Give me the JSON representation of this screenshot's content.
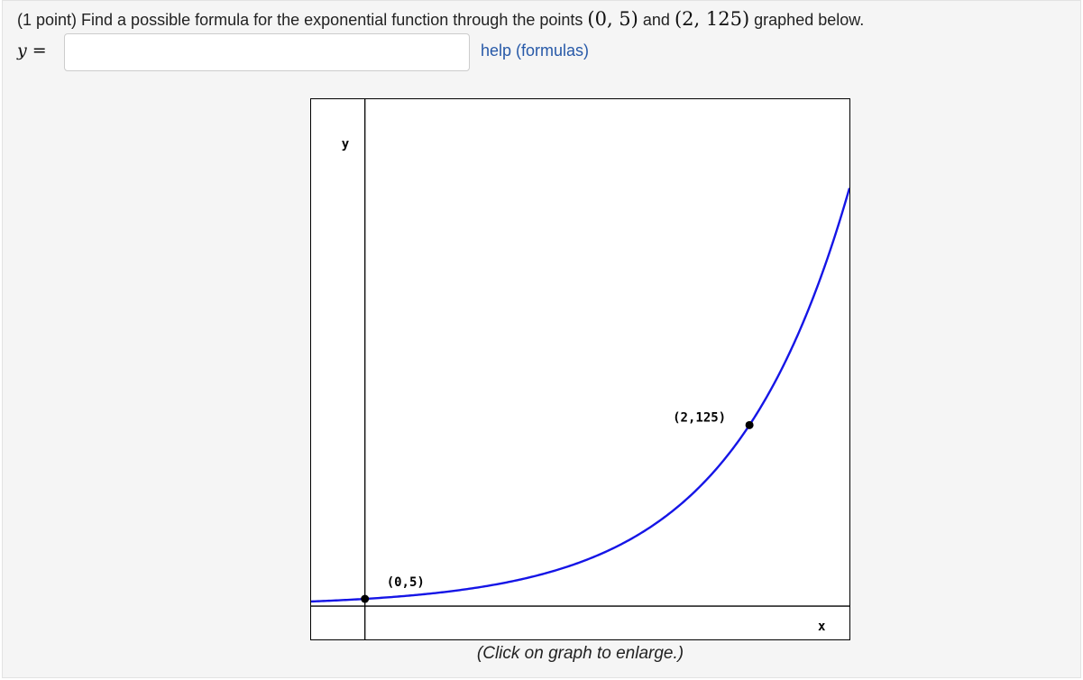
{
  "question": {
    "prefix": "(1 point) Find a possible formula for the exponential function through the points",
    "point1": "(0, 5)",
    "conjunction": "and",
    "point2": "(2, 125)",
    "suffix": "graphed below."
  },
  "answer": {
    "variable": "y",
    "equals": "=",
    "value": "",
    "placeholder": ""
  },
  "help_link": {
    "label": "help (formulas)"
  },
  "graph_caption": "(Click on graph to enlarge.)",
  "colors": {
    "curve": "#1515e6",
    "link": "#2759a8",
    "panel": "#f5f5f5"
  },
  "chart_data": {
    "type": "line",
    "title": "",
    "xlabel": "x",
    "ylabel": "y",
    "function": {
      "a": 5,
      "b": 5
    },
    "xlim": [
      -0.28,
      2.52
    ],
    "ylim": [
      -23,
      350
    ],
    "series": [
      {
        "x": [
          -0.28,
          0,
          0.5,
          1,
          1.5,
          2,
          2.3
        ],
        "y": [
          3.19,
          5,
          11.18,
          25,
          55.9,
          125,
          202.7
        ]
      }
    ],
    "points": [
      {
        "x": 0,
        "y": 5,
        "label": "(0,5)"
      },
      {
        "x": 2,
        "y": 125,
        "label": "(2,125)"
      }
    ],
    "grid": false,
    "legend": "none"
  }
}
